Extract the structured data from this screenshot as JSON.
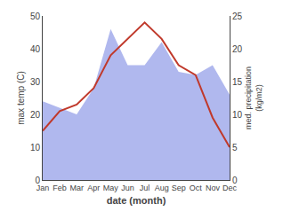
{
  "chart_data": {
    "type": "line",
    "categories": [
      "Jan",
      "Feb",
      "Mar",
      "Apr",
      "May",
      "Jun",
      "Jul",
      "Aug",
      "Sep",
      "Oct",
      "Nov",
      "Dec"
    ],
    "x_label": "date (month)",
    "y_label": "max temp (C)",
    "y2_label": "med. precipitation\n(kg/m2)",
    "ylim": [
      0,
      50
    ],
    "yticks": [
      0,
      10,
      20,
      30,
      40,
      50
    ],
    "y2lim": [
      0,
      25
    ],
    "y2ticks": [
      0,
      5,
      10,
      15,
      20,
      25
    ],
    "grid": false,
    "series": [
      {
        "type": "area",
        "color": "#b0b8ee",
        "values": [
          24,
          22,
          20,
          28,
          46,
          35,
          35,
          42,
          33,
          32,
          35,
          26
        ]
      },
      {
        "type": "line",
        "color": "#c0392b",
        "values": [
          15,
          21,
          23,
          28,
          38,
          43,
          48,
          43,
          35,
          32,
          19,
          10
        ]
      }
    ]
  }
}
